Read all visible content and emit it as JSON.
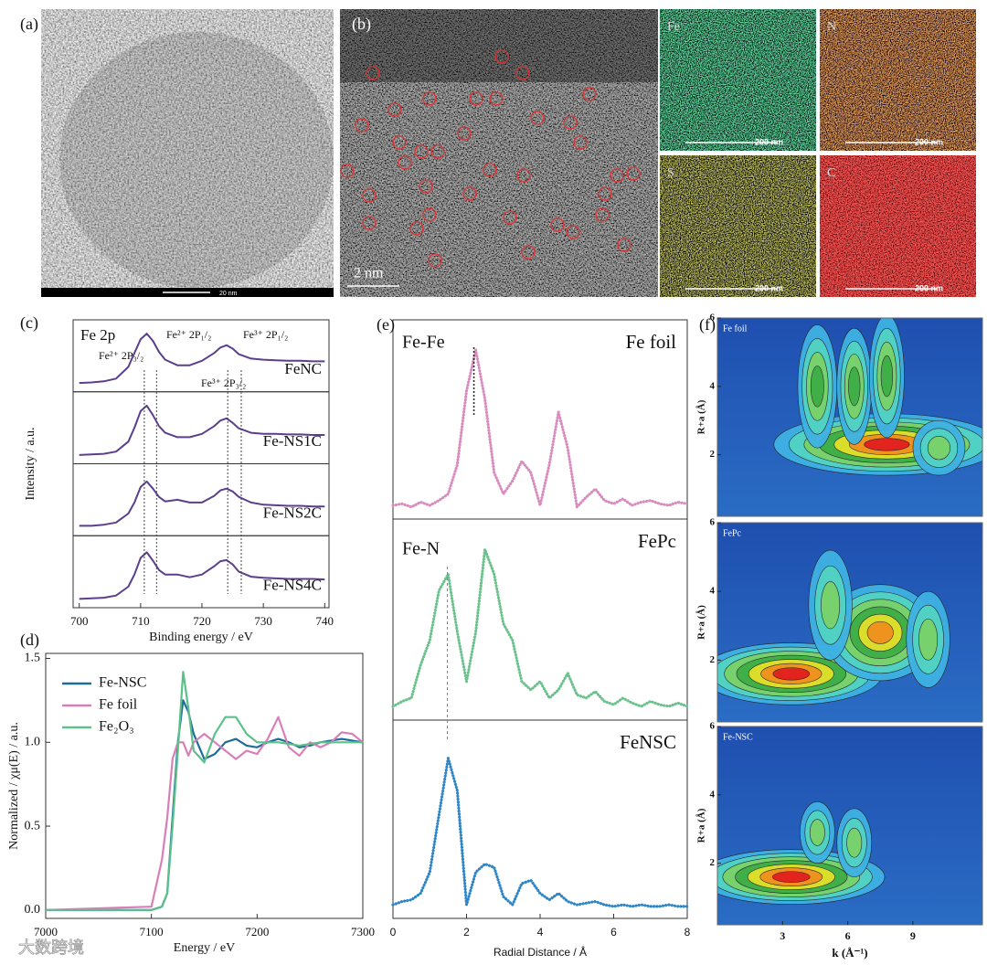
{
  "panels": {
    "a": {
      "label": "(a)",
      "scale_bar": "20 nm"
    },
    "b": {
      "label": "(b)",
      "scale_bar": "2 nm"
    },
    "maps": [
      {
        "element": "Fe",
        "scale_bar": "200 nm"
      },
      {
        "element": "N",
        "scale_bar": "200 nm"
      },
      {
        "element": "S",
        "scale_bar": "200 nm"
      },
      {
        "element": "C",
        "scale_bar": "200 nm"
      }
    ]
  },
  "chart_data": [
    {
      "type": "line",
      "label": "(c)",
      "title": "Fe 2p",
      "xlabel": "Binding energy / eV",
      "ylabel": "Intensity / a.u.",
      "xlim": [
        699,
        740.7
      ],
      "xticks": [
        700,
        710,
        720,
        730,
        740
      ],
      "ylim": [
        0,
        1.1
      ],
      "stacked_panels": true,
      "reference_lines": [
        710.6,
        712.6,
        724.2,
        726.4
      ],
      "annotations": [
        "Fe²⁺ 2P₃/₂",
        "Fe²⁺ 2P₁/₂",
        "Fe³⁺ 2P₁/₂",
        "Fe³⁺ 2P₃/₂"
      ],
      "x": [
        700,
        702,
        704,
        706,
        708,
        709,
        710,
        711,
        712,
        713,
        714,
        716,
        718,
        720,
        722,
        723,
        724,
        725,
        726,
        728,
        730,
        732,
        734,
        736,
        738,
        740
      ],
      "series": [
        {
          "name": "FeNC",
          "color": "#5b3f8c",
          "values": [
            0.06,
            0.07,
            0.09,
            0.14,
            0.35,
            0.6,
            0.85,
            0.95,
            0.82,
            0.62,
            0.48,
            0.38,
            0.38,
            0.46,
            0.6,
            0.7,
            0.74,
            0.68,
            0.58,
            0.5,
            0.48,
            0.47,
            0.46,
            0.46,
            0.45,
            0.45
          ]
        },
        {
          "name": "Fe-NS1C",
          "color": "#5b3f8c",
          "values": [
            0.06,
            0.07,
            0.08,
            0.12,
            0.3,
            0.55,
            0.85,
            0.95,
            0.78,
            0.58,
            0.46,
            0.38,
            0.38,
            0.44,
            0.58,
            0.68,
            0.72,
            0.64,
            0.54,
            0.46,
            0.44,
            0.44,
            0.43,
            0.43,
            0.42,
            0.42
          ]
        },
        {
          "name": "Fe-NS2C",
          "color": "#5b3f8c",
          "values": [
            0.08,
            0.08,
            0.1,
            0.14,
            0.3,
            0.5,
            0.78,
            0.88,
            0.75,
            0.6,
            0.52,
            0.55,
            0.5,
            0.5,
            0.62,
            0.72,
            0.75,
            0.7,
            0.6,
            0.5,
            0.46,
            0.45,
            0.44,
            0.44,
            0.43,
            0.43
          ]
        },
        {
          "name": "Fe-NS4C",
          "color": "#5b3f8c",
          "values": [
            0.06,
            0.07,
            0.08,
            0.12,
            0.28,
            0.5,
            0.8,
            0.9,
            0.75,
            0.58,
            0.5,
            0.5,
            0.45,
            0.5,
            0.65,
            0.74,
            0.76,
            0.68,
            0.55,
            0.46,
            0.44,
            0.43,
            0.42,
            0.42,
            0.42,
            0.41
          ]
        }
      ]
    },
    {
      "type": "line",
      "label": "(d)",
      "xlabel": "Energy / eV",
      "ylabel": "Normalized / χμ(E) / a.u.",
      "xlim": [
        7000,
        7300
      ],
      "xticks": [
        7000,
        7100,
        7200,
        7300
      ],
      "ylim": [
        -0.05,
        1.53
      ],
      "yticks": [
        {
          "value": 0,
          "label": "0.0"
        },
        {
          "value": 0.5,
          "label": "0.5"
        },
        {
          "value": 1,
          "label": "1.0"
        },
        {
          "value": 1.5,
          "label": "1.5"
        }
      ],
      "legend": "upper left",
      "x": [
        7000,
        7100,
        7110,
        7115,
        7120,
        7125,
        7130,
        7135,
        7140,
        7150,
        7160,
        7170,
        7180,
        7190,
        7200,
        7210,
        7220,
        7230,
        7240,
        7250,
        7260,
        7270,
        7280,
        7290,
        7300
      ],
      "series": [
        {
          "name": "Fe-NSC",
          "color": "#1f6c9c",
          "values": [
            0,
            0,
            0.02,
            0.1,
            0.55,
            1.0,
            1.25,
            1.18,
            1.05,
            0.9,
            0.93,
            1.0,
            1.02,
            0.98,
            0.97,
            1.0,
            1.02,
            1.0,
            0.97,
            0.98,
            1.0,
            1.01,
            1.02,
            1.01,
            1.0
          ]
        },
        {
          "name": "Fe foil",
          "color": "#d97fb8",
          "values": [
            0,
            0.02,
            0.3,
            0.55,
            0.9,
            1.0,
            1.0,
            0.92,
            1.0,
            1.05,
            1.0,
            0.95,
            0.9,
            0.95,
            0.93,
            1.02,
            1.15,
            0.97,
            0.92,
            1.0,
            0.97,
            1.0,
            1.06,
            1.05,
            1.0
          ]
        },
        {
          "name": "Fe₂O₃",
          "color": "#5cc08a",
          "values": [
            0,
            0,
            0.02,
            0.1,
            0.5,
            0.95,
            1.42,
            1.2,
            0.95,
            0.88,
            1.05,
            1.15,
            1.15,
            1.05,
            1.0,
            1.0,
            1.0,
            0.99,
            0.98,
            0.99,
            1.0,
            1.0,
            1.0,
            1.0,
            1.0
          ]
        }
      ]
    },
    {
      "type": "line",
      "label": "(e)",
      "xlabel": "Radial Distance / Å",
      "xlim": [
        0,
        8
      ],
      "xticks": [
        0,
        2,
        4,
        6,
        8
      ],
      "ylim": [
        0,
        1.15
      ],
      "stacked_panels": true,
      "annotations": [
        {
          "text": "Fe-Fe",
          "x": 2.2
        },
        {
          "text": "Fe-N",
          "x": 1.48
        }
      ],
      "x": [
        0,
        0.25,
        0.5,
        0.75,
        1,
        1.25,
        1.5,
        1.75,
        2,
        2.25,
        2.5,
        2.75,
        3,
        3.25,
        3.5,
        3.75,
        4,
        4.25,
        4.5,
        4.75,
        5,
        5.25,
        5.5,
        5.75,
        6,
        6.25,
        6.5,
        6.75,
        7,
        7.25,
        7.5,
        7.75,
        8
      ],
      "series": [
        {
          "name": "Fe foil",
          "color": "#d98cbf",
          "values": [
            0.05,
            0.06,
            0.04,
            0.07,
            0.05,
            0.08,
            0.12,
            0.3,
            0.75,
            1.0,
            0.7,
            0.25,
            0.12,
            0.2,
            0.32,
            0.25,
            0.05,
            0.3,
            0.62,
            0.4,
            0.04,
            0.1,
            0.15,
            0.08,
            0.06,
            0.09,
            0.05,
            0.07,
            0.08,
            0.06,
            0.05,
            0.07,
            0.06
          ]
        },
        {
          "name": "FePc",
          "color": "#6cc28c",
          "values": [
            0.05,
            0.08,
            0.1,
            0.3,
            0.45,
            0.75,
            0.85,
            0.5,
            0.2,
            0.5,
            1.0,
            0.85,
            0.55,
            0.45,
            0.2,
            0.15,
            0.2,
            0.1,
            0.15,
            0.25,
            0.12,
            0.1,
            0.14,
            0.08,
            0.06,
            0.1,
            0.07,
            0.05,
            0.08,
            0.06,
            0.05,
            0.07,
            0.05
          ]
        },
        {
          "name": "FeNSC",
          "color": "#2f86c6",
          "values": [
            0.05,
            0.07,
            0.08,
            0.12,
            0.25,
            0.6,
            0.95,
            0.75,
            0.05,
            0.25,
            0.3,
            0.28,
            0.1,
            0.05,
            0.18,
            0.2,
            0.12,
            0.08,
            0.12,
            0.07,
            0.05,
            0.06,
            0.07,
            0.05,
            0.04,
            0.05,
            0.04,
            0.05,
            0.04,
            0.04,
            0.05,
            0.04,
            0.04
          ]
        }
      ]
    },
    {
      "type": "contour",
      "label": "(f)",
      "xlabel": "k (Å⁻¹)",
      "ylabel": "R+a (Å)",
      "xlim": [
        0,
        12.2
      ],
      "xticks": [
        3,
        6,
        9
      ],
      "ylim": [
        0.2,
        6
      ],
      "yticks": [
        2,
        4,
        6
      ],
      "panels": [
        "Fe foil",
        "FePc",
        "Fe-NSC"
      ]
    }
  ],
  "watermark": "大数跨境"
}
